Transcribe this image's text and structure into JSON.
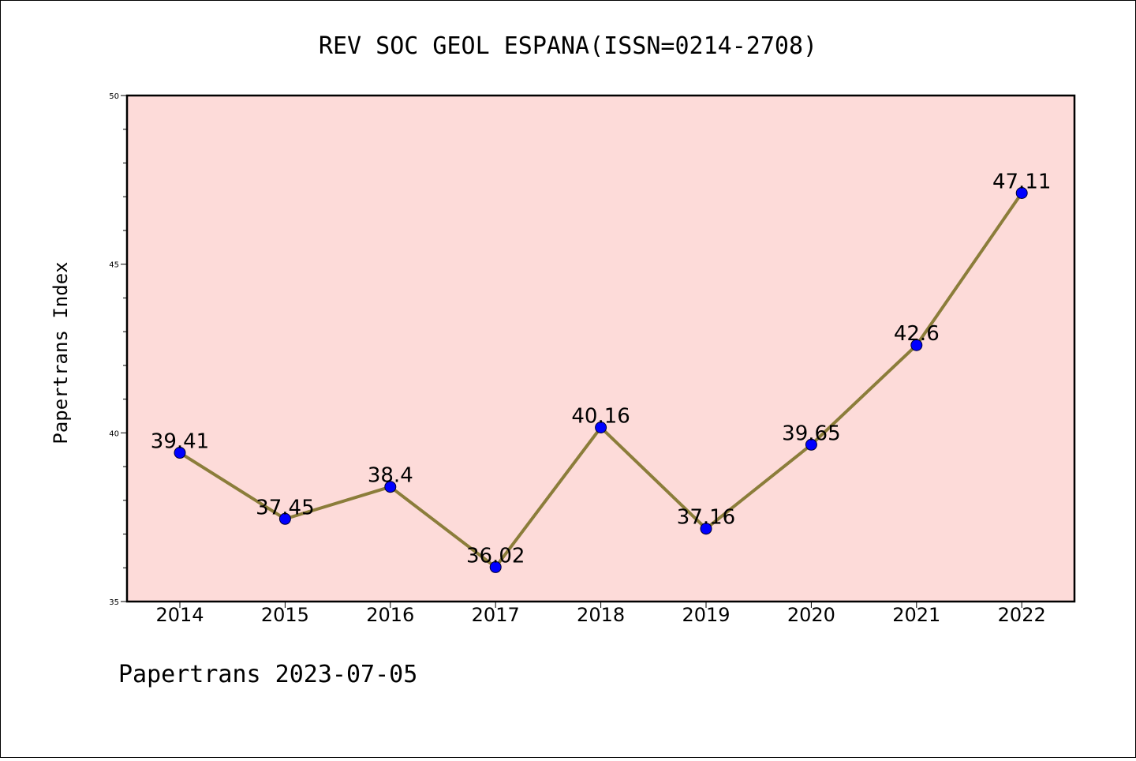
{
  "chart_data": {
    "type": "line",
    "title": "REV SOC GEOL ESPANA(ISSN=0214-2708)",
    "ylabel": "Papertrans Index",
    "xlabel": "",
    "categories": [
      "2014",
      "2015",
      "2016",
      "2017",
      "2018",
      "2019",
      "2020",
      "2021",
      "2022"
    ],
    "values": [
      39.41,
      37.45,
      38.4,
      36.02,
      40.16,
      37.16,
      39.65,
      42.6,
      47.11
    ],
    "value_labels": [
      "39.41",
      "37.45",
      "38.4",
      "36.02",
      "40.16",
      "37.16",
      "39.65",
      "42.6",
      "47.11"
    ],
    "ylim": [
      35,
      50
    ],
    "yticks": [
      35,
      40,
      45,
      50
    ],
    "yticks_labels": [
      "35",
      "40",
      "45",
      "50"
    ],
    "grid": false,
    "legend": "none",
    "colors": {
      "plot_background": "#fddbd9",
      "line": "#8b7d3a",
      "marker": "#0000ff",
      "axes": "#000000"
    }
  },
  "footer": {
    "text": "Papertrans 2023-07-05"
  }
}
